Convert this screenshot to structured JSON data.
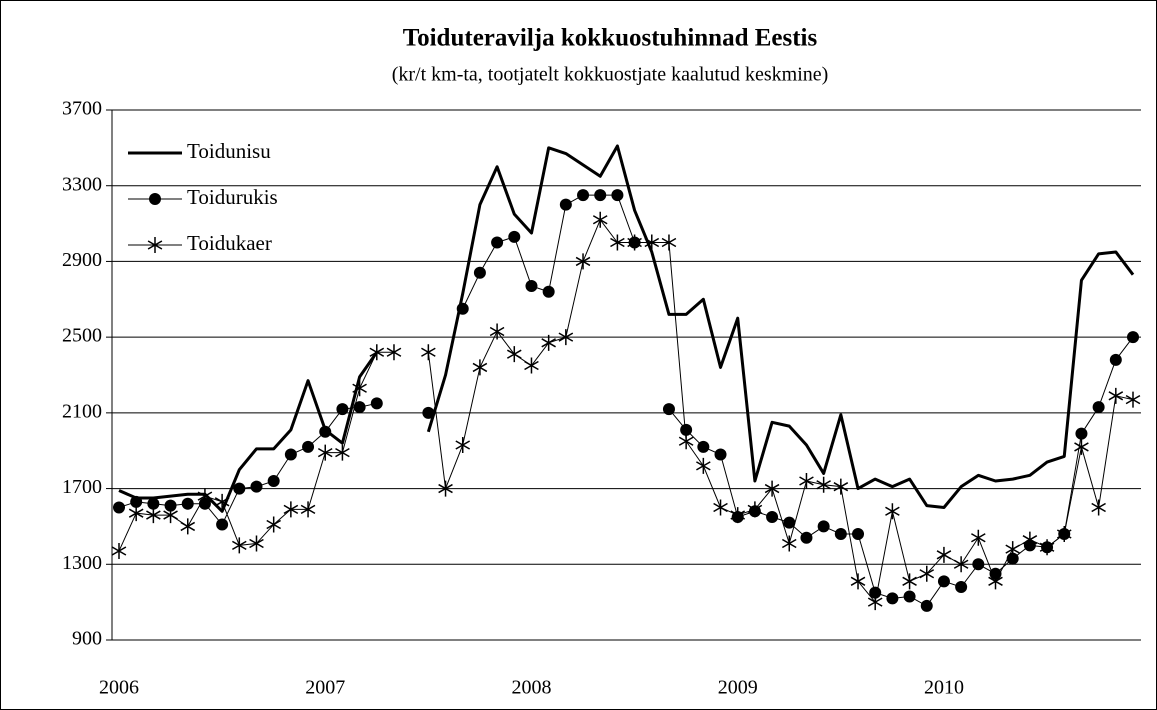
{
  "chart_data": {
    "type": "line",
    "title": "Toiduteravilja kokkuostuhinnad Eestis",
    "subtitle": "(kr/t km-ta, tootjatelt kokkuostjate kaalutud keskmine)",
    "categories": [
      "2006",
      null,
      null,
      null,
      null,
      null,
      null,
      null,
      null,
      null,
      null,
      null,
      "2007",
      null,
      null,
      null,
      null,
      null,
      null,
      null,
      null,
      null,
      null,
      null,
      "2008",
      null,
      null,
      null,
      null,
      null,
      null,
      null,
      null,
      null,
      null,
      null,
      "2009",
      null,
      null,
      null,
      null,
      null,
      null,
      null,
      null,
      null,
      null,
      null,
      "2010",
      null,
      null,
      null,
      null,
      null,
      null,
      null,
      null,
      null,
      null,
      null
    ],
    "ylim": [
      900,
      3700
    ],
    "yticks": [
      900,
      1300,
      1700,
      2100,
      2500,
      2900,
      3300,
      3700
    ],
    "grid": true,
    "legend": "upper left",
    "series": [
      {
        "name": "Toidunisu",
        "color": "#000000",
        "marker": "none",
        "line_width": 3,
        "values": [
          1690,
          1650,
          1650,
          1660,
          1670,
          1670,
          1580,
          1800,
          1910,
          1910,
          2010,
          2270,
          2010,
          1940,
          2290,
          2420,
          null,
          null,
          2000,
          2300,
          2730,
          3200,
          3400,
          3150,
          3050,
          3500,
          3470,
          3410,
          3350,
          3510,
          3170,
          2950,
          2620,
          2620,
          2700,
          2340,
          2600,
          1740,
          2050,
          2030,
          1930,
          1780,
          2090,
          1700,
          1750,
          1710,
          1750,
          1610,
          1600,
          1710,
          1770,
          1740,
          1750,
          1770,
          1840,
          1870,
          2800,
          2940,
          2950,
          2830
        ]
      },
      {
        "name": "Toidurukis",
        "color": "#000000",
        "marker": "circle",
        "line_width": 1,
        "values": [
          1600,
          1630,
          1620,
          1610,
          1620,
          1620,
          1510,
          1700,
          1710,
          1740,
          1880,
          1920,
          2000,
          2120,
          2130,
          2150,
          null,
          null,
          2100,
          null,
          2650,
          2840,
          3000,
          3030,
          2770,
          2740,
          3200,
          3250,
          3250,
          3250,
          3000,
          null,
          2120,
          2010,
          1920,
          1880,
          1550,
          1580,
          1550,
          1520,
          1440,
          1500,
          1460,
          1460,
          1150,
          1120,
          1130,
          1080,
          1210,
          1180,
          1300,
          1250,
          1330,
          1400,
          1390,
          1460,
          1990,
          2130,
          2380,
          2500
        ]
      },
      {
        "name": "Toidukaer",
        "color": "#000000",
        "marker": "star",
        "line_width": 1,
        "values": [
          1370,
          1570,
          1560,
          1560,
          1500,
          1660,
          1630,
          1400,
          1410,
          1510,
          1590,
          1590,
          1890,
          1890,
          2230,
          2420,
          2420,
          null,
          2420,
          1700,
          1930,
          2340,
          2530,
          2410,
          2350,
          2470,
          2500,
          2900,
          3120,
          3000,
          3000,
          3000,
          3000,
          1950,
          1820,
          1600,
          1560,
          1590,
          1700,
          1410,
          1740,
          1720,
          1710,
          1210,
          1100,
          1580,
          1210,
          1250,
          1350,
          1300,
          1440,
          1210,
          1380,
          1430,
          1390,
          1460,
          1920,
          1600,
          2190,
          2170
        ]
      }
    ]
  }
}
